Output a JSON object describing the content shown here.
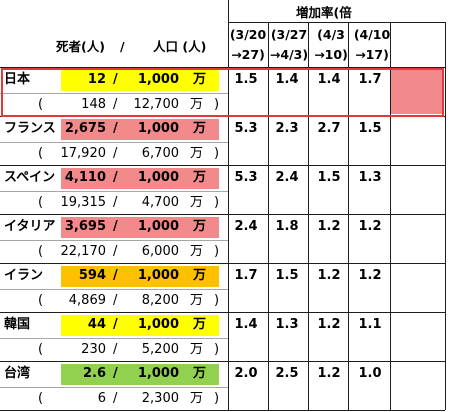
{
  "header": {
    "growth_title": "増加率(倍",
    "deaths_label": "死者(人)",
    "slash": "/",
    "pop_label": "人口 (人)",
    "periods": [
      {
        "line1": "(3/20",
        "line2": "→27)"
      },
      {
        "line1": "(3/27",
        "line2": "→4/3)"
      },
      {
        "line1": "(4/3",
        "line2": "→10)"
      },
      {
        "line1": "(4/10",
        "line2": "→17)"
      }
    ]
  },
  "colors": {
    "yellow": "#ffff00",
    "red": "#f28a8c",
    "orange": "#ffc000",
    "green": "#92d050",
    "highlight_cell": "#f28a8c",
    "highlight_border": "#e03a3a"
  },
  "rows": [
    {
      "name": "日本",
      "deaths_per": "12",
      "per_pop": "1,000",
      "unit": "万",
      "color": "yellow",
      "deaths": "148",
      "population": "12,700",
      "rates": [
        "1.5",
        "1.4",
        "1.4",
        "1.7"
      ]
    },
    {
      "name": "フランス",
      "deaths_per": "2,675",
      "per_pop": "1,000",
      "unit": "万",
      "color": "red",
      "deaths": "17,920",
      "population": "6,700",
      "rates": [
        "5.3",
        "2.3",
        "2.7",
        "1.5"
      ]
    },
    {
      "name": "スペイン",
      "deaths_per": "4,110",
      "per_pop": "1,000",
      "unit": "万",
      "color": "red",
      "deaths": "19,315",
      "population": "4,700",
      "rates": [
        "5.3",
        "2.4",
        "1.5",
        "1.3"
      ]
    },
    {
      "name": "イタリア",
      "deaths_per": "3,695",
      "per_pop": "1,000",
      "unit": "万",
      "color": "red",
      "deaths": "22,170",
      "population": "6,000",
      "rates": [
        "2.4",
        "1.8",
        "1.2",
        "1.2"
      ]
    },
    {
      "name": "イラン",
      "deaths_per": "594",
      "per_pop": "1,000",
      "unit": "万",
      "color": "orange",
      "deaths": "4,869",
      "population": "8,200",
      "rates": [
        "1.7",
        "1.5",
        "1.2",
        "1.2"
      ]
    },
    {
      "name": "韓国",
      "deaths_per": "44",
      "per_pop": "1,000",
      "unit": "万",
      "color": "yellow",
      "deaths": "230",
      "population": "5,200",
      "rates": [
        "1.4",
        "1.3",
        "1.2",
        "1.1"
      ]
    },
    {
      "name": "台湾",
      "deaths_per": "2.6",
      "per_pop": "1,000",
      "unit": "万",
      "color": "green",
      "deaths": "6",
      "population": "2,300",
      "rates": [
        "2.0",
        "2.5",
        "1.2",
        "1.0"
      ]
    }
  ],
  "symbols": {
    "open_paren": "(",
    "close_paren": ")",
    "slash": "/",
    "unit": "万"
  }
}
